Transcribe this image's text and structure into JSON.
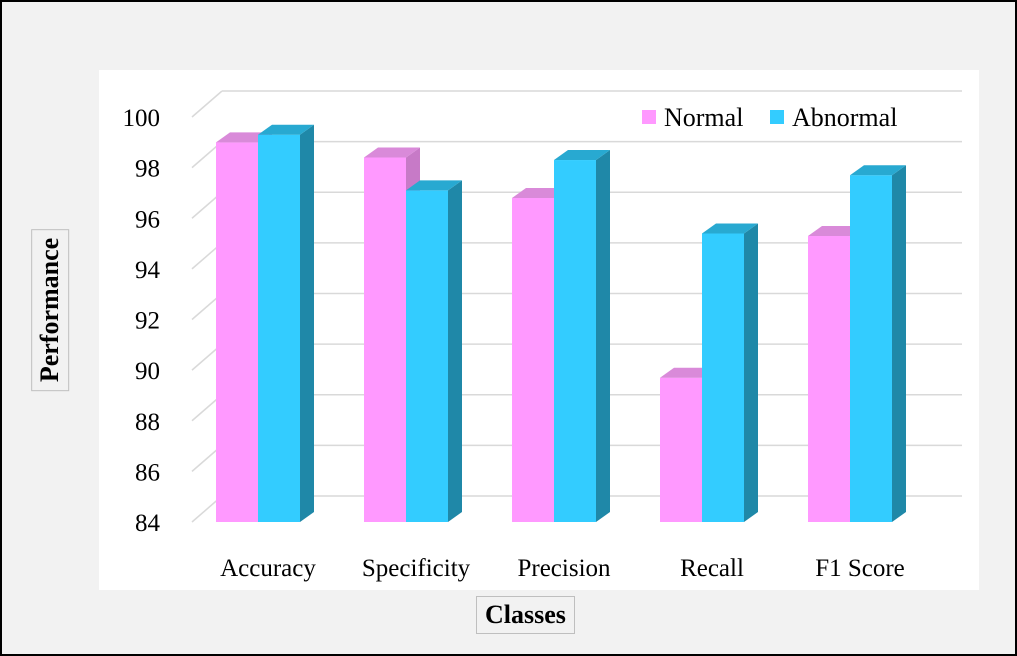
{
  "chart_data": {
    "type": "bar",
    "categories": [
      "Accuracy",
      "Specificity",
      "Precision",
      "Recall",
      "F1 Score"
    ],
    "series": [
      {
        "name": "Normal",
        "values": [
          99.0,
          98.4,
          96.8,
          89.7,
          95.3
        ],
        "color": "#ff99ff"
      },
      {
        "name": "Abnormal",
        "values": [
          99.3,
          97.1,
          98.3,
          95.4,
          97.7
        ],
        "color": "#33ccff"
      }
    ],
    "title": "",
    "xlabel": "Classes",
    "ylabel": "Performance",
    "ylim": [
      84,
      100
    ],
    "yticks": [
      84,
      86,
      88,
      90,
      92,
      94,
      96,
      98,
      100
    ],
    "grid": true,
    "legend_position": "top-right"
  }
}
